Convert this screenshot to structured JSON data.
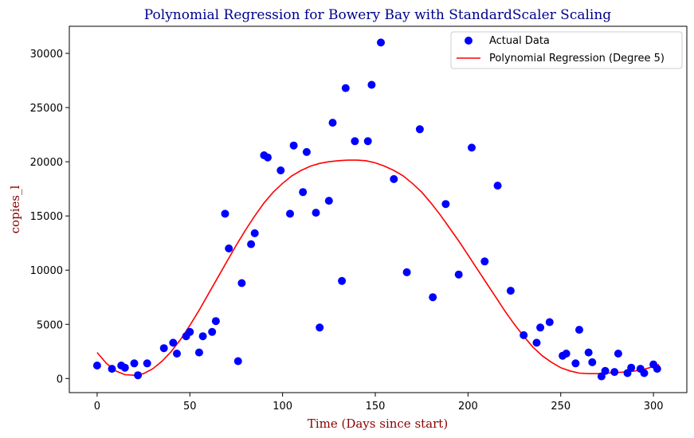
{
  "chart_data": {
    "type": "scatter",
    "title": "Polynomial Regression for Bowery Bay with StandardScaler Scaling",
    "xlabel": "Time (Days since start)",
    "ylabel": "copies_l",
    "xlim": [
      -15,
      318
    ],
    "ylim": [
      -1300,
      32500
    ],
    "xticks": [
      0,
      50,
      100,
      150,
      200,
      250,
      300
    ],
    "yticks": [
      0,
      5000,
      10000,
      15000,
      20000,
      25000,
      30000
    ],
    "legend": {
      "placement": "top-right",
      "entries": [
        "Actual Data",
        "Polynomial Regression (Degree 5)"
      ]
    },
    "colors": {
      "scatter": "#0000ff",
      "line": "#ff0000",
      "title": "#00008b",
      "axis_label": "#8b0000"
    },
    "series": [
      {
        "name": "Actual Data",
        "kind": "scatter",
        "points": [
          [
            0,
            1200
          ],
          [
            8,
            900
          ],
          [
            13,
            1200
          ],
          [
            15,
            1000
          ],
          [
            20,
            1400
          ],
          [
            22,
            300
          ],
          [
            27,
            1400
          ],
          [
            36,
            2800
          ],
          [
            41,
            3300
          ],
          [
            43,
            2300
          ],
          [
            48,
            3900
          ],
          [
            50,
            4300
          ],
          [
            55,
            2400
          ],
          [
            57,
            3900
          ],
          [
            62,
            4300
          ],
          [
            64,
            5300
          ],
          [
            69,
            15200
          ],
          [
            71,
            12000
          ],
          [
            76,
            1600
          ],
          [
            78,
            8800
          ],
          [
            83,
            12400
          ],
          [
            85,
            13400
          ],
          [
            90,
            20600
          ],
          [
            92,
            20400
          ],
          [
            99,
            19200
          ],
          [
            104,
            15200
          ],
          [
            106,
            21500
          ],
          [
            111,
            17200
          ],
          [
            113,
            20900
          ],
          [
            118,
            15300
          ],
          [
            120,
            4700
          ],
          [
            125,
            16400
          ],
          [
            127,
            23600
          ],
          [
            132,
            9000
          ],
          [
            134,
            26800
          ],
          [
            139,
            21900
          ],
          [
            146,
            21900
          ],
          [
            148,
            27100
          ],
          [
            153,
            31000
          ],
          [
            160,
            18400
          ],
          [
            167,
            9800
          ],
          [
            174,
            23000
          ],
          [
            181,
            7500
          ],
          [
            188,
            16100
          ],
          [
            195,
            9600
          ],
          [
            202,
            21300
          ],
          [
            209,
            10800
          ],
          [
            216,
            17800
          ],
          [
            223,
            8100
          ],
          [
            230,
            4000
          ],
          [
            237,
            3300
          ],
          [
            239,
            4700
          ],
          [
            244,
            5200
          ],
          [
            251,
            2100
          ],
          [
            253,
            2300
          ],
          [
            258,
            1400
          ],
          [
            260,
            4500
          ],
          [
            265,
            2400
          ],
          [
            267,
            1500
          ],
          [
            272,
            200
          ],
          [
            274,
            700
          ],
          [
            279,
            600
          ],
          [
            281,
            2300
          ],
          [
            286,
            500
          ],
          [
            288,
            1000
          ],
          [
            293,
            900
          ],
          [
            295,
            500
          ],
          [
            300,
            1300
          ],
          [
            302,
            900
          ]
        ]
      },
      {
        "name": "Polynomial Regression (Degree 5)",
        "kind": "line",
        "points": [
          [
            0,
            2400
          ],
          [
            5,
            1400
          ],
          [
            10,
            700
          ],
          [
            15,
            350
          ],
          [
            20,
            300
          ],
          [
            25,
            450
          ],
          [
            30,
            900
          ],
          [
            35,
            1600
          ],
          [
            40,
            2500
          ],
          [
            45,
            3600
          ],
          [
            50,
            4900
          ],
          [
            55,
            6300
          ],
          [
            60,
            7800
          ],
          [
            65,
            9300
          ],
          [
            70,
            10800
          ],
          [
            75,
            12300
          ],
          [
            80,
            13700
          ],
          [
            85,
            15000
          ],
          [
            90,
            16200
          ],
          [
            95,
            17200
          ],
          [
            100,
            18000
          ],
          [
            105,
            18700
          ],
          [
            110,
            19200
          ],
          [
            115,
            19600
          ],
          [
            120,
            19850
          ],
          [
            125,
            20000
          ],
          [
            130,
            20100
          ],
          [
            135,
            20150
          ],
          [
            140,
            20150
          ],
          [
            145,
            20100
          ],
          [
            150,
            19900
          ],
          [
            155,
            19600
          ],
          [
            160,
            19200
          ],
          [
            165,
            18700
          ],
          [
            170,
            18000
          ],
          [
            175,
            17200
          ],
          [
            180,
            16200
          ],
          [
            185,
            15100
          ],
          [
            190,
            13900
          ],
          [
            195,
            12700
          ],
          [
            200,
            11400
          ],
          [
            205,
            10100
          ],
          [
            210,
            8800
          ],
          [
            215,
            7500
          ],
          [
            220,
            6200
          ],
          [
            225,
            5000
          ],
          [
            230,
            3900
          ],
          [
            235,
            2900
          ],
          [
            240,
            2100
          ],
          [
            245,
            1500
          ],
          [
            250,
            1000
          ],
          [
            255,
            700
          ],
          [
            260,
            500
          ],
          [
            265,
            450
          ],
          [
            270,
            450
          ],
          [
            275,
            500
          ],
          [
            280,
            550
          ],
          [
            285,
            600
          ],
          [
            290,
            700
          ],
          [
            295,
            850
          ],
          [
            300,
            1100
          ],
          [
            303,
            1300
          ]
        ]
      }
    ]
  }
}
